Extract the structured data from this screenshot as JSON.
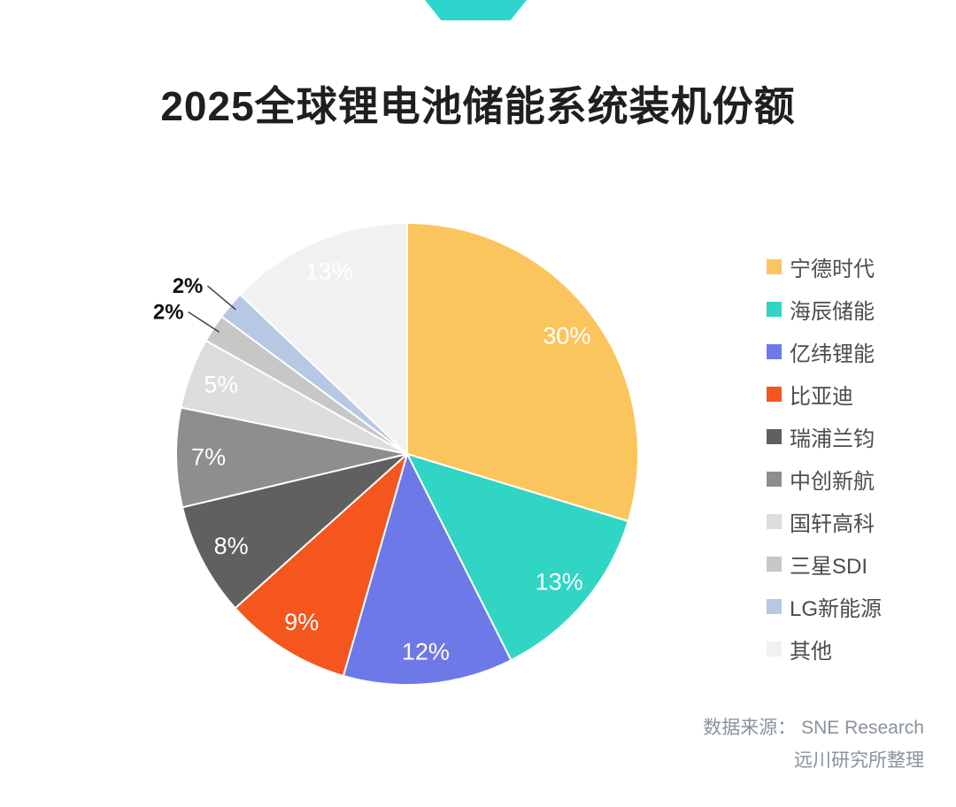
{
  "page": {
    "title": "2025全球锂电池储能系统装机份额",
    "source_line1": "数据来源： SNE Research",
    "source_line2": "远川研究所整理"
  },
  "colors": {
    "accent_ribbon": "#2ED5CD",
    "background": "#FFFFFF",
    "title_text": "#1F1F1F",
    "legend_text": "#4D4D4D",
    "source_text": "#8A929B"
  },
  "chart_data": {
    "type": "pie",
    "title": "2025全球锂电池储能系统装机份额",
    "start_angle_deg": 0,
    "direction": "clockwise",
    "legend_position": "right",
    "series": [
      {
        "name": "宁德时代",
        "value": 30,
        "label": "30%",
        "color": "#FBC55D"
      },
      {
        "name": "海辰储能",
        "value": 13,
        "label": "13%",
        "color": "#31D5C4"
      },
      {
        "name": "亿纬锂能",
        "value": 12,
        "label": "12%",
        "color": "#6E79E8"
      },
      {
        "name": "比亚迪",
        "value": 9,
        "label": "9%",
        "color": "#F4561D"
      },
      {
        "name": "瑞浦兰钧",
        "value": 8,
        "label": "8%",
        "color": "#606060"
      },
      {
        "name": "中创新航",
        "value": 7,
        "label": "7%",
        "color": "#8E8E8E"
      },
      {
        "name": "国轩高科",
        "value": 5,
        "label": "5%",
        "color": "#DDDDDD"
      },
      {
        "name": "三星SDI",
        "value": 2,
        "label": "2%",
        "color": "#C7C7C7",
        "label_outside": true
      },
      {
        "name": "LG新能源",
        "value": 2,
        "label": "2%",
        "color": "#B6C8E4",
        "label_outside": true
      },
      {
        "name": "其他",
        "value": 13,
        "label": "13%",
        "color": "#F1F1F2"
      }
    ]
  }
}
